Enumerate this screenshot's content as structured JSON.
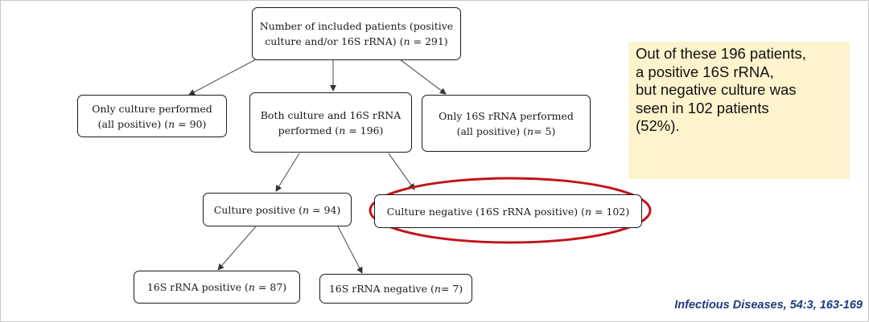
{
  "flowchart": {
    "nodes": {
      "root": {
        "line1": "Number of included patients (positive",
        "line2": "culture and/or 16S rRNA) (",
        "n_label": "n",
        "line2_end": " = 291)"
      },
      "only_culture": {
        "line1": "Only culture performed",
        "line2": "(all positive) (",
        "n_label": "n",
        "line2_end": " = 90)"
      },
      "both": {
        "line1": "Both culture and 16S rRNA",
        "line2": "performed (",
        "n_label": "n",
        "line2_end": " = 196)"
      },
      "only_16s": {
        "line1": "Only 16S rRNA performed",
        "line2": "(all positive) (",
        "n_label": "n",
        "line2_end": "= 5)"
      },
      "culture_pos": {
        "text": "Culture positive (",
        "n_label": "n",
        "text_end": " = 94)"
      },
      "culture_neg": {
        "text": "Culture negative (16S rRNA positive) (",
        "n_label": "n",
        "text_end": " = 102)"
      },
      "rrna_pos": {
        "text": "16S rRNA positive (",
        "n_label": "n",
        "text_end": " = 87)"
      },
      "rrna_neg": {
        "text": "16S rRNA negative (",
        "n_label": "n",
        "text_end": "= 7)"
      }
    },
    "highlight_color": "#c0141a"
  },
  "callout": {
    "lines": [
      "Out of these 196 patients,",
      "a positive 16S rRNA,",
      "but negative culture was",
      "seen in 102 patients",
      "(52%)."
    ],
    "background": "#fdf3cd"
  },
  "citation": "Infectious Diseases, 54:3, 163-169",
  "colors": {
    "citation": "#1f3a7a",
    "box_border": "#1a1a1a"
  }
}
